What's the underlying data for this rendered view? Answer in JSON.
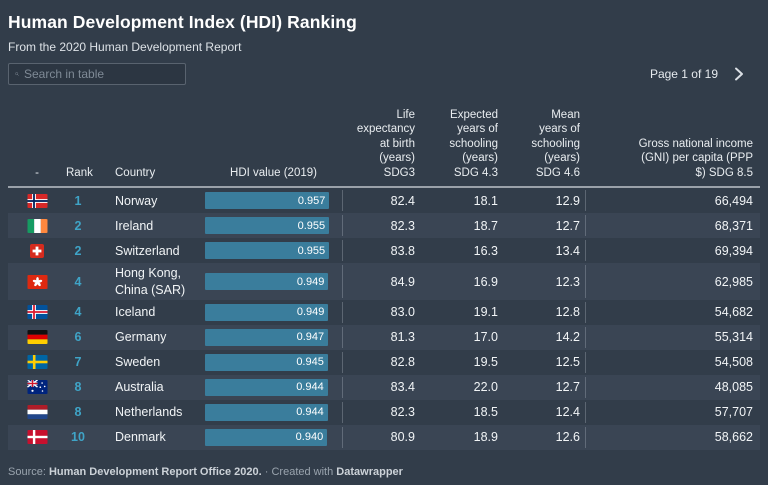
{
  "page": {
    "title": "Human Development Index (HDI) Ranking",
    "subtitle": "From the 2020 Human Development Report"
  },
  "toolbar": {
    "search_placeholder": "Search in table",
    "pagination_label": "Page 1 of 19",
    "next_icon": "chevron-right"
  },
  "table": {
    "columns": [
      {
        "key": "flag",
        "label": "-"
      },
      {
        "key": "rank",
        "label": "Rank"
      },
      {
        "key": "country",
        "label": "Country"
      },
      {
        "key": "hdi",
        "label": "HDI value (2019)"
      },
      {
        "key": "life_expectancy",
        "label": "Life\nexpectancy\nat birth\n(years)\nSDG3"
      },
      {
        "key": "expected_schooling",
        "label": "Expected\nyears of\nschooling\n(years)\nSDG 4.3"
      },
      {
        "key": "mean_schooling",
        "label": "Mean\nyears of\nschooling\n(years)\nSDG 4.6"
      },
      {
        "key": "gni",
        "label": "Gross national income\n(GNI) per capita (PPP\n$) SDG 8.5"
      }
    ],
    "rows": [
      {
        "flag": "norway",
        "rank": "1",
        "country": "Norway",
        "hdi_label": "0.957",
        "hdi_value": 0.957,
        "life_expectancy": "82.4",
        "expected_schooling": "18.1",
        "mean_schooling": "12.9",
        "gni": "66,494"
      },
      {
        "flag": "ireland",
        "rank": "2",
        "country": "Ireland",
        "hdi_label": "0.955",
        "hdi_value": 0.955,
        "life_expectancy": "82.3",
        "expected_schooling": "18.7",
        "mean_schooling": "12.7",
        "gni": "68,371"
      },
      {
        "flag": "switzerland",
        "rank": "2",
        "country": "Switzerland",
        "hdi_label": "0.955",
        "hdi_value": 0.955,
        "life_expectancy": "83.8",
        "expected_schooling": "16.3",
        "mean_schooling": "13.4",
        "gni": "69,394"
      },
      {
        "flag": "hong-kong",
        "rank": "4",
        "country": "Hong Kong,\nChina (SAR)",
        "hdi_label": "0.949",
        "hdi_value": 0.949,
        "life_expectancy": "84.9",
        "expected_schooling": "16.9",
        "mean_schooling": "12.3",
        "gni": "62,985"
      },
      {
        "flag": "iceland",
        "rank": "4",
        "country": "Iceland",
        "hdi_label": "0.949",
        "hdi_value": 0.949,
        "life_expectancy": "83.0",
        "expected_schooling": "19.1",
        "mean_schooling": "12.8",
        "gni": "54,682"
      },
      {
        "flag": "germany",
        "rank": "6",
        "country": "Germany",
        "hdi_label": "0.947",
        "hdi_value": 0.947,
        "life_expectancy": "81.3",
        "expected_schooling": "17.0",
        "mean_schooling": "14.2",
        "gni": "55,314"
      },
      {
        "flag": "sweden",
        "rank": "7",
        "country": "Sweden",
        "hdi_label": "0.945",
        "hdi_value": 0.945,
        "life_expectancy": "82.8",
        "expected_schooling": "19.5",
        "mean_schooling": "12.5",
        "gni": "54,508"
      },
      {
        "flag": "australia",
        "rank": "8",
        "country": "Australia",
        "hdi_label": "0.944",
        "hdi_value": 0.944,
        "life_expectancy": "83.4",
        "expected_schooling": "22.0",
        "mean_schooling": "12.7",
        "gni": "48,085"
      },
      {
        "flag": "netherlands",
        "rank": "8",
        "country": "Netherlands",
        "hdi_label": "0.944",
        "hdi_value": 0.944,
        "life_expectancy": "82.3",
        "expected_schooling": "18.5",
        "mean_schooling": "12.4",
        "gni": "57,707"
      },
      {
        "flag": "denmark",
        "rank": "10",
        "country": "Denmark",
        "hdi_label": "0.940",
        "hdi_value": 0.94,
        "life_expectancy": "80.9",
        "expected_schooling": "18.9",
        "mean_schooling": "12.6",
        "gni": "58,662"
      }
    ]
  },
  "footer": {
    "source_label": "Source: ",
    "source": "Human Development Report Office 2020.",
    "middle": " · Created with ",
    "brand": "Datawrapper"
  },
  "colors": {
    "background": "#323d4a",
    "row_even": "#3a4554",
    "bar": "#3a7d9c",
    "rank_accent": "#3fa4c7",
    "header_border": "#9aa1a9"
  }
}
